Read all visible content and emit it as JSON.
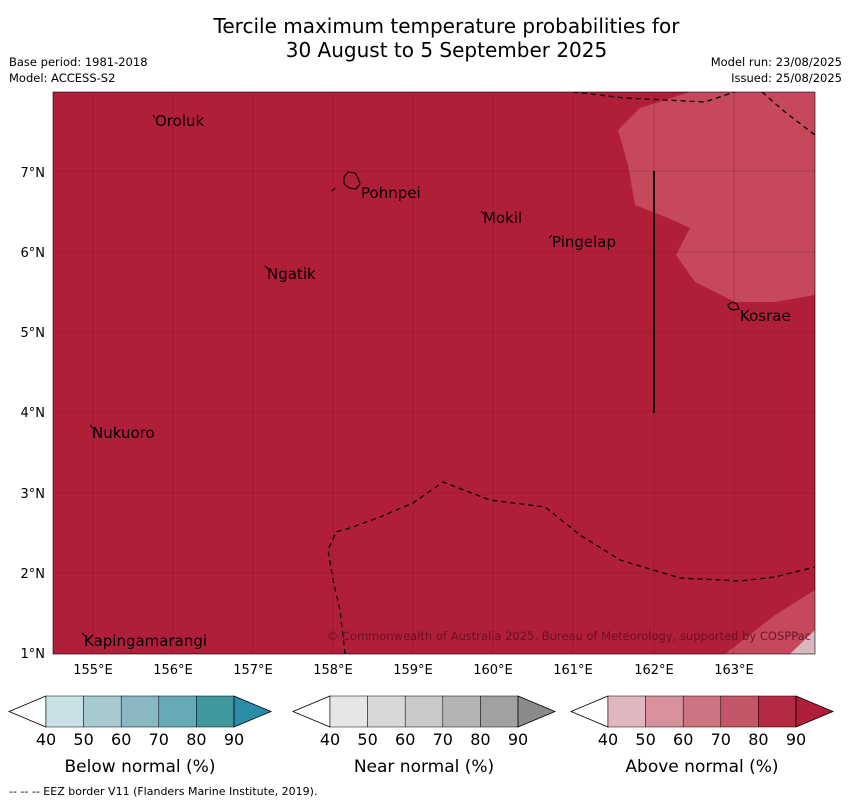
{
  "header": {
    "title_line1": "Tercile maximum temperature probabilities for",
    "title_line2": "30 August to 5 September 2025",
    "base_period": "Base period: 1981-2018",
    "model": "Model: ACCESS-S2",
    "model_run": "Model run: 23/08/2025",
    "issued": "Issued: 25/08/2025"
  },
  "map": {
    "lon_ticks": [
      "155°E",
      "156°E",
      "157°E",
      "158°E",
      "159°E",
      "160°E",
      "161°E",
      "162°E",
      "163°E"
    ],
    "lat_ticks": [
      "7°N",
      "6°N",
      "5°N",
      "4°N",
      "3°N",
      "2°N",
      "1°N"
    ],
    "places": {
      "oroluk": "Oroluk",
      "pohnpei": "Pohnpei",
      "mokil": "Mokil",
      "pingelap": "Pingelap",
      "ngatik": "Ngatik",
      "kosrae": "Kosrae",
      "nukuoro": "Nukuoro",
      "kapingamarangi": "Kapingamarangi"
    },
    "copyright": "© Commonwealth of Australia 2025, Bureau of Meteorology, supported by COSPPac",
    "colors": {
      "above_90": "#b01e3a",
      "above_80": "#c5485d"
    }
  },
  "legend": {
    "ticks": [
      "40",
      "50",
      "60",
      "70",
      "80",
      "90"
    ],
    "below_label": "Below normal (%)",
    "near_label": "Near normal (%)",
    "above_label": "Above normal (%)",
    "below_colors": [
      "#ffffff",
      "#c8e1e7",
      "#a7c9d0",
      "#89b8c2",
      "#66aab8",
      "#41979e",
      "#2b8ca8"
    ],
    "near_colors": [
      "#ffffff",
      "#e6e6e6",
      "#d8d8d8",
      "#c9c9c9",
      "#b4b4b4",
      "#a1a1a1",
      "#8a8a8a"
    ],
    "above_colors": [
      "#ffffff",
      "#e1b7bf",
      "#d6919c",
      "#cc7480",
      "#c35768",
      "#b42a45",
      "#b01e3a"
    ]
  },
  "footer": {
    "eez_note": "--  --  -- EEZ border V11 (Flanders Marine Institute, 2019)."
  }
}
